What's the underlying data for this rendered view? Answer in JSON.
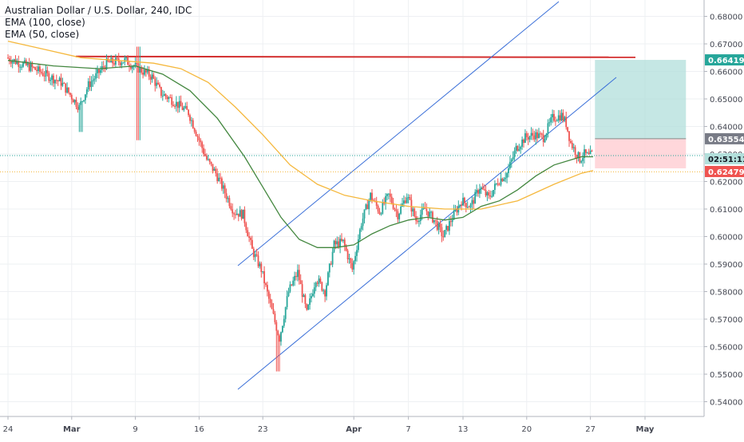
{
  "legend": {
    "title": "Australian Dollar / U.S. Dollar, 240, IDC",
    "ema100": "EMA (100, close)",
    "ema50": "EMA (50, close)"
  },
  "colors": {
    "up": "#26a69a",
    "down": "#ef5350",
    "ema50": "#43873f",
    "ema100": "#f5b83d",
    "channel": "#3a6fd8",
    "resistance": "#d32f2f",
    "target_zone": "#b2dfdb",
    "stop_zone": "#ffcdd2",
    "price_dotted": "#26a69a"
  },
  "chart_data": {
    "type": "line",
    "title": "Australian Dollar / U.S. Dollar, 240, IDC",
    "ylim": [
      0.5375,
      0.6875
    ],
    "y_ticks": [
      "0.68000",
      "0.67000",
      "0.66000",
      "0.65000",
      "0.64000",
      "0.63000",
      "0.62000",
      "0.61000",
      "0.60000",
      "0.59000",
      "0.58000",
      "0.57000",
      "0.56000",
      "0.55000",
      "0.54000"
    ],
    "x_ticks": [
      "24",
      "Mar",
      "9",
      "16",
      "23",
      "Apr",
      "7",
      "13",
      "20",
      "27",
      "May"
    ],
    "price_path": [
      {
        "d": 0,
        "v": 0.665
      },
      {
        "d": 3,
        "v": 0.661
      },
      {
        "d": 6,
        "v": 0.656
      },
      {
        "d": 8,
        "v": 0.647
      },
      {
        "d": 9,
        "v": 0.655
      },
      {
        "d": 11,
        "v": 0.663
      },
      {
        "d": 13,
        "v": 0.664
      },
      {
        "d": 15,
        "v": 0.66
      },
      {
        "d": 16,
        "v": 0.658
      },
      {
        "d": 17,
        "v": 0.652
      },
      {
        "d": 18,
        "v": 0.65
      },
      {
        "d": 20,
        "v": 0.645
      },
      {
        "d": 22,
        "v": 0.628
      },
      {
        "d": 23,
        "v": 0.623
      },
      {
        "d": 25,
        "v": 0.609
      },
      {
        "d": 26,
        "v": 0.608
      },
      {
        "d": 27,
        "v": 0.595
      },
      {
        "d": 28,
        "v": 0.588
      },
      {
        "d": 29,
        "v": 0.575
      },
      {
        "d": 30,
        "v": 0.563
      },
      {
        "d": 31,
        "v": 0.58
      },
      {
        "d": 32,
        "v": 0.587
      },
      {
        "d": 33,
        "v": 0.572
      },
      {
        "d": 34,
        "v": 0.585
      },
      {
        "d": 35,
        "v": 0.58
      },
      {
        "d": 36,
        "v": 0.597
      },
      {
        "d": 37,
        "v": 0.598
      },
      {
        "d": 38,
        "v": 0.588
      },
      {
        "d": 39,
        "v": 0.605
      },
      {
        "d": 40,
        "v": 0.615
      },
      {
        "d": 41,
        "v": 0.609
      },
      {
        "d": 42,
        "v": 0.615
      },
      {
        "d": 43,
        "v": 0.608
      },
      {
        "d": 44,
        "v": 0.615
      },
      {
        "d": 45,
        "v": 0.606
      },
      {
        "d": 46,
        "v": 0.61
      },
      {
        "d": 47,
        "v": 0.606
      },
      {
        "d": 48,
        "v": 0.6
      },
      {
        "d": 49,
        "v": 0.607
      },
      {
        "d": 50,
        "v": 0.613
      },
      {
        "d": 51,
        "v": 0.611
      },
      {
        "d": 52,
        "v": 0.618
      },
      {
        "d": 53,
        "v": 0.614
      },
      {
        "d": 54,
        "v": 0.62
      },
      {
        "d": 55,
        "v": 0.623
      },
      {
        "d": 56,
        "v": 0.632
      },
      {
        "d": 57,
        "v": 0.636
      },
      {
        "d": 58,
        "v": 0.637
      },
      {
        "d": 59,
        "v": 0.636
      },
      {
        "d": 60,
        "v": 0.643
      },
      {
        "d": 61,
        "v": 0.644
      },
      {
        "d": 61.5,
        "v": 0.641
      },
      {
        "d": 62,
        "v": 0.634
      },
      {
        "d": 62.5,
        "v": 0.631
      },
      {
        "d": 63,
        "v": 0.628
      },
      {
        "d": 63.5,
        "v": 0.63
      },
      {
        "d": 64,
        "v": 0.629
      },
      {
        "d": 64.3,
        "v": 0.63
      }
    ],
    "ema50": [
      {
        "d": 0,
        "v": 0.664
      },
      {
        "d": 5,
        "v": 0.662
      },
      {
        "d": 10,
        "v": 0.661
      },
      {
        "d": 14,
        "v": 0.662
      },
      {
        "d": 17,
        "v": 0.659
      },
      {
        "d": 20,
        "v": 0.653
      },
      {
        "d": 23,
        "v": 0.643
      },
      {
        "d": 26,
        "v": 0.629
      },
      {
        "d": 28,
        "v": 0.618
      },
      {
        "d": 30,
        "v": 0.607
      },
      {
        "d": 32,
        "v": 0.599
      },
      {
        "d": 34,
        "v": 0.596
      },
      {
        "d": 36,
        "v": 0.596
      },
      {
        "d": 38,
        "v": 0.597
      },
      {
        "d": 40,
        "v": 0.601
      },
      {
        "d": 42,
        "v": 0.604
      },
      {
        "d": 44,
        "v": 0.606
      },
      {
        "d": 46,
        "v": 0.607
      },
      {
        "d": 48,
        "v": 0.606
      },
      {
        "d": 50,
        "v": 0.607
      },
      {
        "d": 52,
        "v": 0.611
      },
      {
        "d": 54,
        "v": 0.613
      },
      {
        "d": 56,
        "v": 0.617
      },
      {
        "d": 58,
        "v": 0.622
      },
      {
        "d": 60,
        "v": 0.626
      },
      {
        "d": 62,
        "v": 0.628
      },
      {
        "d": 63,
        "v": 0.629
      },
      {
        "d": 64.3,
        "v": 0.629
      }
    ],
    "ema100": [
      {
        "d": 0,
        "v": 0.671
      },
      {
        "d": 4,
        "v": 0.668
      },
      {
        "d": 8,
        "v": 0.665
      },
      {
        "d": 12,
        "v": 0.664
      },
      {
        "d": 16,
        "v": 0.663
      },
      {
        "d": 19,
        "v": 0.661
      },
      {
        "d": 22,
        "v": 0.656
      },
      {
        "d": 25,
        "v": 0.647
      },
      {
        "d": 28,
        "v": 0.637
      },
      {
        "d": 31,
        "v": 0.626
      },
      {
        "d": 34,
        "v": 0.619
      },
      {
        "d": 37,
        "v": 0.615
      },
      {
        "d": 40,
        "v": 0.613
      },
      {
        "d": 44,
        "v": 0.611
      },
      {
        "d": 48,
        "v": 0.61
      },
      {
        "d": 52,
        "v": 0.61
      },
      {
        "d": 56,
        "v": 0.613
      },
      {
        "d": 60,
        "v": 0.619
      },
      {
        "d": 63,
        "v": 0.623
      },
      {
        "d": 64.3,
        "v": 0.624
      }
    ],
    "annotations": {
      "resistance_price": 0.666,
      "entry_price": 0.63554,
      "target_price": 0.66419,
      "stop_price": 0.62479,
      "current_price": 0.63,
      "ema100_last": 0.6235,
      "position_start_day": 64.5,
      "position_end_day": 74.5
    },
    "price_labels": {
      "target": "0.66419",
      "entry": "0.63554",
      "timer": "02:51:11",
      "stop": "0.62479"
    }
  }
}
